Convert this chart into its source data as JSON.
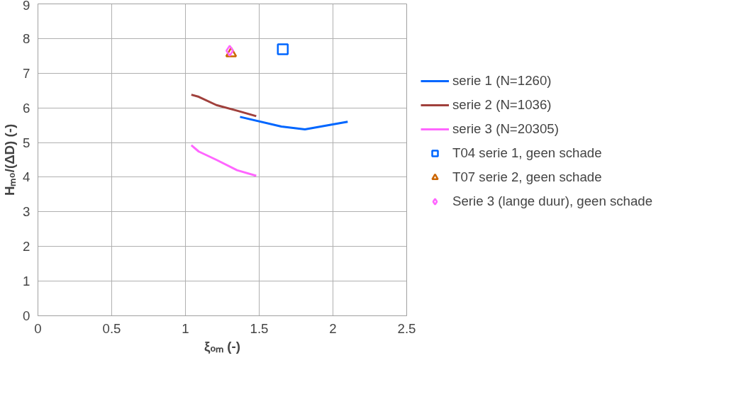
{
  "chart_data": {
    "type": "line",
    "xlabel": "ξₒₘ (-)",
    "ylabel": "Hₘ₀/(ΔD) (-)",
    "xlim": [
      0,
      2.5
    ],
    "xticks": [
      0,
      0.5,
      1,
      1.5,
      2,
      2.5
    ],
    "ylim": [
      0,
      9
    ],
    "yticks": [
      0,
      1,
      2,
      3,
      4,
      5,
      6,
      7,
      8,
      9
    ],
    "grid": true,
    "legend": "right",
    "series": [
      {
        "name": "serie 1 (N=1260)",
        "color": "#0066ff",
        "x": [
          1.37,
          1.65,
          1.81,
          2.1
        ],
        "values": [
          5.74,
          5.46,
          5.38,
          5.6
        ]
      },
      {
        "name": "serie 2 (N=1036)",
        "color": "#a0403c",
        "x": [
          1.04,
          1.09,
          1.21,
          1.35,
          1.48
        ],
        "values": [
          6.38,
          6.32,
          6.08,
          5.92,
          5.76
        ]
      },
      {
        "name": "serie 3 (N=20305)",
        "color": "#ff66ff",
        "x": [
          1.04,
          1.09,
          1.21,
          1.35,
          1.48
        ],
        "values": [
          4.92,
          4.74,
          4.5,
          4.2,
          4.04
        ]
      },
      {
        "name": "T04 serie 1, geen schade",
        "type": "scatter",
        "marker": "square",
        "color": "#0066ff",
        "x": [
          1.66
        ],
        "values": [
          7.69
        ]
      },
      {
        "name": "T07 serie 2, geen schade",
        "type": "scatter",
        "marker": "triangle",
        "color": "#cc6600",
        "x": [
          1.31
        ],
        "values": [
          7.57
        ]
      },
      {
        "name": "Serie 3 (lange duur), geen schade",
        "type": "scatter",
        "marker": "diamond",
        "color": "#ff66ff",
        "x": [
          1.3
        ],
        "values": [
          7.65
        ]
      }
    ]
  }
}
